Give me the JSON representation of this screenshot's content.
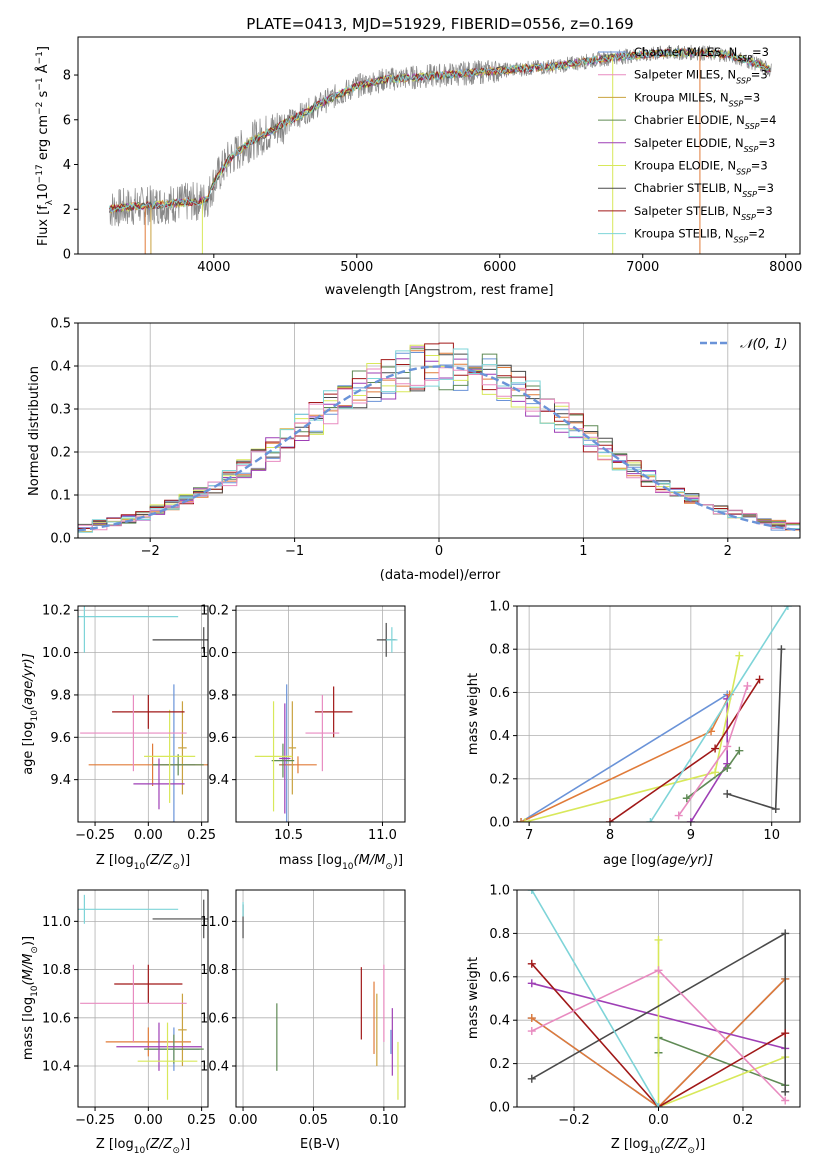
{
  "title": "PLATE=0413, MJD=51929, FIBERID=0556, z=0.169",
  "colors": [
    "#6a93d8",
    "#e07b39",
    "#c9a23f",
    "#5f8a55",
    "#9e3fb5",
    "#d8e85a",
    "#4a4a4a",
    "#a01818",
    "#7ed4d8",
    "#e88bc0",
    "#888888"
  ],
  "legend_labels": [
    "Chabrier MILES, N",
    "Salpeter MILES, N",
    "Kroupa MILES, N",
    "Chabrier ELODIE, N",
    "Salpeter ELODIE, N",
    "Kroupa ELODIE, N",
    "Chabrier STELIB, N",
    "Salpeter STELIB, N",
    "Kroupa STELIB, N"
  ],
  "legend_subscript": "SSP",
  "legend_counts": [
    "=3",
    "=3",
    "=3",
    "=4",
    "=3",
    "=3",
    "=3",
    "=3",
    "=2"
  ],
  "normal_label": "𝒩(0, 1)",
  "chart_data": [
    {
      "type": "line",
      "name": "spectrum",
      "xlabel": "wavelength [Angstrom, rest frame]",
      "ylabel": "Flux [f",
      "ylabel_suffix": "10",
      "ylabel_exp": "−17",
      "ylabel_units": " erg cm",
      "xlim": [
        3050,
        8100
      ],
      "ylim": [
        0,
        9.7
      ],
      "xticks": [
        4000,
        5000,
        6000,
        7000,
        8000
      ],
      "yticks": [
        0,
        2,
        4,
        6,
        8
      ],
      "continuum": [
        [
          3270,
          2.0
        ],
        [
          3400,
          2.1
        ],
        [
          3600,
          2.2
        ],
        [
          3800,
          2.3
        ],
        [
          3950,
          2.4
        ],
        [
          4000,
          3.2
        ],
        [
          4100,
          4.2
        ],
        [
          4250,
          5.0
        ],
        [
          4400,
          5.5
        ],
        [
          4600,
          6.2
        ],
        [
          4800,
          6.9
        ],
        [
          5000,
          7.5
        ],
        [
          5200,
          7.8
        ],
        [
          5400,
          7.9
        ],
        [
          5600,
          8.0
        ],
        [
          5800,
          8.1
        ],
        [
          6000,
          8.2
        ],
        [
          6200,
          8.3
        ],
        [
          6400,
          8.4
        ],
        [
          6600,
          8.6
        ],
        [
          6800,
          8.8
        ],
        [
          7000,
          8.9
        ],
        [
          7200,
          9.0
        ],
        [
          7400,
          9.0
        ],
        [
          7600,
          8.9
        ],
        [
          7800,
          8.5
        ],
        [
          7900,
          8.2
        ]
      ]
    },
    {
      "type": "histogram",
      "name": "residuals",
      "xlabel": "(data-model)/error",
      "ylabel": "Normed distribution",
      "xlim": [
        -2.5,
        2.5
      ],
      "ylim": [
        0,
        0.5
      ],
      "xticks": [
        -2,
        -1,
        0,
        1,
        2
      ],
      "yticks": [
        0.0,
        0.1,
        0.2,
        0.3,
        0.4,
        0.5
      ],
      "bin_width": 0.1
    },
    {
      "type": "scatter",
      "name": "age-vs-Z",
      "xlabel": "Z [log",
      "xlabel_sub": "10",
      "xlabel_rest": "(Z/Z",
      "ylabel": "age  [log",
      "ylabel_rest": "(age/yr)]",
      "xlim": [
        -0.33,
        0.28
      ],
      "ylim": [
        9.2,
        10.22
      ],
      "xticks": [
        -0.25,
        0.0,
        0.25
      ],
      "xticklabels": [
        "−0.25",
        "0.00",
        "0.25"
      ],
      "yticks": [
        9.4,
        9.6,
        9.8,
        10.0,
        10.2
      ],
      "points": [
        {
          "c": 0,
          "x": 0.12,
          "y": 9.47,
          "xe": 0.1,
          "ye": 0.38
        },
        {
          "c": 1,
          "x": 0.02,
          "y": 9.47,
          "xe": 0.3,
          "ye": 0.1
        },
        {
          "c": 2,
          "x": 0.16,
          "y": 9.55,
          "xe": 0.02,
          "ye": 0.22
        },
        {
          "c": 3,
          "x": 0.14,
          "y": 9.47,
          "xe": 0.12,
          "ye": 0.05
        },
        {
          "c": 4,
          "x": 0.05,
          "y": 9.38,
          "xe": 0.12,
          "ye": 0.12
        },
        {
          "c": 5,
          "x": 0.1,
          "y": 9.51,
          "xe": 0.12,
          "ye": 0.22
        },
        {
          "c": 6,
          "x": 0.26,
          "y": 10.06,
          "xe": 0.24,
          "ye": 0.06
        },
        {
          "c": 7,
          "x": 0.0,
          "y": 9.72,
          "xe": 0.17,
          "ye": 0.08
        },
        {
          "c": 8,
          "x": -0.3,
          "y": 10.17,
          "xe": 0.44,
          "ye": 0.17
        },
        {
          "c": 9,
          "x": -0.07,
          "y": 9.62,
          "xe": 0.25,
          "ye": 0.18
        }
      ]
    },
    {
      "type": "scatter",
      "name": "age-vs-mass",
      "xlabel": "mass [log",
      "xlabel_sub": "10",
      "xlabel_rest": "(M/M",
      "xlim": [
        10.22,
        11.12
      ],
      "ylim": [
        9.2,
        10.22
      ],
      "xticks": [
        10.5,
        11.0
      ],
      "xticklabels": [
        "10.5",
        "11.0"
      ],
      "yticks": [
        9.4,
        9.6,
        9.8,
        10.0,
        10.2
      ],
      "points": [
        {
          "c": 0,
          "x": 10.49,
          "y": 9.47,
          "xe": 0.04,
          "ye": 0.38
        },
        {
          "c": 1,
          "x": 10.55,
          "y": 9.47,
          "xe": 0.1,
          "ye": 0.04
        },
        {
          "c": 2,
          "x": 10.52,
          "y": 9.55,
          "xe": 0.02,
          "ye": 0.22
        },
        {
          "c": 3,
          "x": 10.47,
          "y": 9.49,
          "xe": 0.06,
          "ye": 0.08
        },
        {
          "c": 4,
          "x": 10.48,
          "y": 9.5,
          "xe": 0.03,
          "ye": 0.26
        },
        {
          "c": 5,
          "x": 10.42,
          "y": 9.51,
          "xe": 0.1,
          "ye": 0.26
        },
        {
          "c": 6,
          "x": 11.02,
          "y": 10.06,
          "xe": 0.05,
          "ye": 0.08
        },
        {
          "c": 7,
          "x": 10.74,
          "y": 9.72,
          "xe": 0.1,
          "ye": 0.12
        },
        {
          "c": 8,
          "x": 11.05,
          "y": 10.06,
          "xe": 0.03,
          "ye": 0.06
        },
        {
          "c": 9,
          "x": 10.68,
          "y": 9.62,
          "xe": 0.09,
          "ye": 0.18
        }
      ]
    },
    {
      "type": "line",
      "name": "mass-weight-vs-age",
      "xlabel": "age  [log",
      "xlabel_rest": "(age/yr)]",
      "ylabel": "mass weight",
      "xlim": [
        6.85,
        10.35
      ],
      "ylim": [
        0,
        1.0
      ],
      "xticks": [
        7,
        8,
        9,
        10
      ],
      "yticks": [
        0.0,
        0.2,
        0.4,
        0.6,
        0.8,
        1.0
      ],
      "yticklabels": [
        "0.0",
        "0.2",
        "0.4",
        "0.6",
        "0.8",
        "1.0"
      ],
      "series": [
        {
          "c": 0,
          "points": [
            [
              6.9,
              0.0
            ],
            [
              9.45,
              0.59
            ]
          ]
        },
        {
          "c": 1,
          "points": [
            [
              6.9,
              0.0
            ],
            [
              9.25,
              0.42
            ],
            [
              9.48,
              0.59
            ]
          ]
        },
        {
          "c": 4,
          "points": [
            [
              9.45,
              0.57
            ],
            [
              9.45,
              0.27
            ],
            [
              9.0,
              0.0
            ]
          ]
        },
        {
          "c": 3,
          "points": [
            [
              8.95,
              0.11
            ],
            [
              9.45,
              0.25
            ],
            [
              9.6,
              0.33
            ]
          ]
        },
        {
          "c": 5,
          "points": [
            [
              6.95,
              0.0
            ],
            [
              9.3,
              0.23
            ],
            [
              9.6,
              0.77
            ]
          ]
        },
        {
          "c": 6,
          "points": [
            [
              9.45,
              0.13
            ],
            [
              10.05,
              0.06
            ],
            [
              10.12,
              0.8
            ]
          ]
        },
        {
          "c": 7,
          "points": [
            [
              8.0,
              0.0
            ],
            [
              9.3,
              0.34
            ],
            [
              9.85,
              0.66
            ]
          ]
        },
        {
          "c": 8,
          "points": [
            [
              8.5,
              0.0
            ],
            [
              10.2,
              1.0
            ]
          ]
        },
        {
          "c": 9,
          "points": [
            [
              8.85,
              0.03
            ],
            [
              9.45,
              0.35
            ],
            [
              9.7,
              0.63
            ]
          ]
        }
      ]
    },
    {
      "type": "scatter",
      "name": "mass-vs-Z",
      "xlabel": "Z [log",
      "xlabel_sub": "10",
      "xlabel_rest": "(Z/Z",
      "ylabel": "mass [log",
      "ylabel_rest": "(M/M",
      "xlim": [
        -0.33,
        0.28
      ],
      "ylim": [
        10.23,
        11.13
      ],
      "xticks": [
        -0.25,
        0.0,
        0.25
      ],
      "xticklabels": [
        "−0.25",
        "0.00",
        "0.25"
      ],
      "yticks": [
        10.4,
        10.6,
        10.8,
        11.0
      ],
      "points": [
        {
          "c": 0,
          "x": 0.12,
          "y": 10.47,
          "xe": 0.12,
          "ye": 0.09
        },
        {
          "c": 1,
          "x": 0.0,
          "y": 10.5,
          "xe": 0.2,
          "ye": 0.06
        },
        {
          "c": 2,
          "x": 0.16,
          "y": 10.55,
          "xe": 0.02,
          "ye": 0.15
        },
        {
          "c": 3,
          "x": 0.12,
          "y": 10.47,
          "xe": 0.14,
          "ye": 0.06
        },
        {
          "c": 4,
          "x": 0.05,
          "y": 10.48,
          "xe": 0.2,
          "ye": 0.1
        },
        {
          "c": 5,
          "x": 0.09,
          "y": 10.42,
          "xe": 0.14,
          "ye": 0.16
        },
        {
          "c": 6,
          "x": 0.26,
          "y": 11.01,
          "xe": 0.24,
          "ye": 0.08
        },
        {
          "c": 7,
          "x": 0.0,
          "y": 10.74,
          "xe": 0.16,
          "ye": 0.08
        },
        {
          "c": 8,
          "x": -0.3,
          "y": 11.05,
          "xe": 0.44,
          "ye": 0.06
        },
        {
          "c": 9,
          "x": -0.07,
          "y": 10.66,
          "xe": 0.25,
          "ye": 0.16
        }
      ]
    },
    {
      "type": "scatter",
      "name": "mass-vs-EBV",
      "xlabel": "E(B-V)",
      "xlim": [
        -0.005,
        0.115
      ],
      "ylim": [
        10.23,
        11.13
      ],
      "xticks": [
        0.0,
        0.05,
        0.1
      ],
      "xticklabels": [
        "0.00",
        "0.05",
        "0.10"
      ],
      "yticks": [
        10.4,
        10.6,
        10.8,
        11.0
      ],
      "points": [
        {
          "c": 0,
          "x": 0.105,
          "y": 10.5,
          "xe": 0,
          "ye": 0.05
        },
        {
          "c": 1,
          "x": 0.093,
          "y": 10.6,
          "xe": 0,
          "ye": 0.15
        },
        {
          "c": 2,
          "x": 0.095,
          "y": 10.55,
          "xe": 0,
          "ye": 0.15
        },
        {
          "c": 3,
          "x": 0.024,
          "y": 10.52,
          "xe": 0,
          "ye": 0.14
        },
        {
          "c": 4,
          "x": 0.106,
          "y": 10.5,
          "xe": 0,
          "ye": 0.14
        },
        {
          "c": 5,
          "x": 0.11,
          "y": 10.38,
          "xe": 0,
          "ye": 0.12
        },
        {
          "c": 6,
          "x": 0.0,
          "y": 11.0,
          "xe": 0,
          "ye": 0.07
        },
        {
          "c": 7,
          "x": 0.084,
          "y": 10.66,
          "xe": 0,
          "ye": 0.15
        },
        {
          "c": 8,
          "x": 0.0,
          "y": 11.05,
          "xe": 0,
          "ye": 0.03
        },
        {
          "c": 9,
          "x": 0.1,
          "y": 10.66,
          "xe": 0,
          "ye": 0.16
        }
      ]
    },
    {
      "type": "line",
      "name": "mass-weight-vs-Z",
      "xlabel": "Z [log",
      "xlabel_sub": "10",
      "xlabel_rest": "(Z/Z",
      "ylabel": "mass weight",
      "xlim": [
        -0.335,
        0.335
      ],
      "ylim": [
        0,
        1.0
      ],
      "xticks": [
        -0.2,
        0.0,
        0.2
      ],
      "xticklabels": [
        "−0.2",
        "0.0",
        "0.2"
      ],
      "yticks": [
        0.0,
        0.2,
        0.4,
        0.6,
        0.8,
        1.0
      ],
      "yticklabels": [
        "0.0",
        "0.2",
        "0.4",
        "0.6",
        "0.8",
        "1.0"
      ],
      "series": [
        {
          "c": 0,
          "points": [
            [
              -0.3,
              0.41
            ],
            [
              0.0,
              0.0
            ],
            [
              0.3,
              0.59
            ]
          ]
        },
        {
          "c": 1,
          "points": [
            [
              -0.3,
              0.41
            ],
            [
              0.0,
              0.0
            ],
            [
              0.3,
              0.59
            ]
          ]
        },
        {
          "c": 3,
          "points": [
            [
              0.0,
              0.25
            ],
            [
              0.0,
              0.32
            ],
            [
              0.3,
              0.1
            ]
          ]
        },
        {
          "c": 4,
          "points": [
            [
              -0.3,
              0.57
            ],
            [
              0.3,
              0.27
            ]
          ]
        },
        {
          "c": 5,
          "points": [
            [
              0.0,
              0.77
            ],
            [
              0.0,
              0.0
            ],
            [
              0.3,
              0.23
            ]
          ]
        },
        {
          "c": 6,
          "points": [
            [
              -0.3,
              0.13
            ],
            [
              0.3,
              0.8
            ],
            [
              0.3,
              0.07
            ]
          ]
        },
        {
          "c": 7,
          "points": [
            [
              -0.3,
              0.66
            ],
            [
              0.0,
              0.0
            ],
            [
              0.3,
              0.34
            ]
          ]
        },
        {
          "c": 8,
          "points": [
            [
              -0.3,
              1.0
            ],
            [
              0.0,
              0.0
            ]
          ]
        },
        {
          "c": 9,
          "points": [
            [
              -0.3,
              0.35
            ],
            [
              0.0,
              0.63
            ],
            [
              0.3,
              0.03
            ]
          ]
        }
      ]
    }
  ]
}
